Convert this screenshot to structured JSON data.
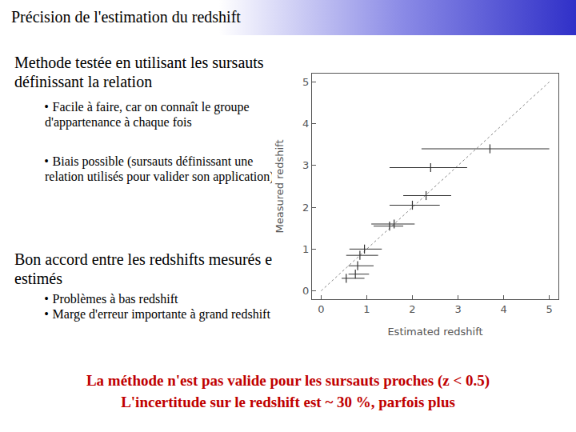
{
  "header": {
    "title": "Précision de l'estimation du redshift"
  },
  "left_text": [
    {
      "text": "Methode testée en utilisant les sursauts définissant la relation",
      "bullets": [
        "Facile à faire, car on connaît le groupe d'appartenance à chaque fois",
        "Biais possible (sursauts définissant une relation utilisés pour valider son application)"
      ]
    },
    {
      "text": "Bon accord entre les redshifts mesurés et estimés",
      "bullets": [
        "Problèmes à bas redshift",
        "Marge d'erreur importante à grand redshift"
      ]
    }
  ],
  "conclusion": [
    "La méthode n'est pas valide pour les sursauts proches (z < 0.5)",
    "L'incertitude sur le redshift est ~ 30 %, parfois plus"
  ],
  "chart_data": {
    "type": "scatter",
    "x_label": "Estimated redshift",
    "y_label": "Measured redshift",
    "xlim": [
      -0.2,
      5.2
    ],
    "ylim": [
      -0.2,
      5.2
    ],
    "xticks": [
      0,
      1,
      2,
      3,
      4,
      5
    ],
    "yticks": [
      0,
      1,
      2,
      3,
      4,
      5
    ],
    "grid": false,
    "series": [
      {
        "type": "line",
        "line_style": "dotted",
        "color": "#888888",
        "x": [
          0,
          5
        ],
        "y": [
          0,
          5
        ]
      },
      {
        "type": "scatter",
        "marker": "line-ns",
        "color": "#333333",
        "x": [
          3.7,
          2.4,
          2.3,
          2.0,
          1.6,
          1.5,
          0.95,
          0.85,
          0.8,
          0.75,
          0.55
        ],
        "y": [
          3.4,
          2.95,
          2.28,
          2.05,
          1.6,
          1.55,
          1.0,
          0.85,
          0.6,
          0.4,
          0.3
        ],
        "x_error_minus": [
          1.5,
          0.9,
          0.5,
          0.5,
          0.5,
          0.35,
          0.33,
          0.3,
          0.2,
          0.15,
          0.1
        ],
        "x_error_plus": [
          1.3,
          0.8,
          0.55,
          0.6,
          0.45,
          0.3,
          0.38,
          0.4,
          0.35,
          0.3,
          0.4
        ]
      }
    ]
  }
}
